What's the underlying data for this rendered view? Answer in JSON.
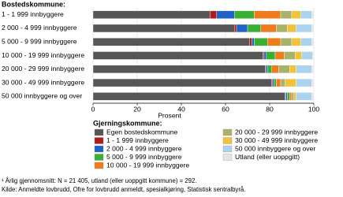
{
  "chart_data": {
    "type": "bar",
    "orientation": "horizontal",
    "stacked": true,
    "y_label": "Bostedskommune:",
    "x_label": "Prosent",
    "legend_title": "Gjerningskommune:",
    "categories": [
      "1 - 1 999 innbyggere",
      "2 000  -  4 999 innbyggere",
      "5 000  -  9 999 innbyggere",
      "10 000 - 19 999 innbyggere",
      "20 000 - 29 999 innbyggere",
      "30 000 - 49 999 innbyggere",
      "50 000 innbyggere og over"
    ],
    "series": [
      {
        "name": "Egen bostedskommune",
        "color": "#575757",
        "values": [
          53,
          64,
          71,
          77,
          78,
          81,
          87
        ]
      },
      {
        "name": "1 - 1 999 innbyggere",
        "color": "#b01c1c",
        "values": [
          3,
          1,
          1,
          0.5,
          0.3,
          0.3,
          0.3
        ]
      },
      {
        "name": "2 000 - 4 999 innbyggere",
        "color": "#1f63c6",
        "values": [
          8,
          5,
          1,
          1,
          0.7,
          0.7,
          0.7
        ]
      },
      {
        "name": "5 000 - 9 999 innbyggere",
        "color": "#3aaf35",
        "values": [
          9,
          6,
          6,
          4,
          2,
          1,
          1
        ]
      },
      {
        "name": "10 000 - 19 999 innbyggere",
        "color": "#ef7b1d",
        "values": [
          12,
          7,
          6,
          4,
          3,
          2,
          1
        ]
      },
      {
        "name": "20 000 - 29 999 innbyggere",
        "color": "#a9b26b",
        "values": [
          5,
          5,
          5,
          5,
          5,
          2,
          1
        ]
      },
      {
        "name": "30 000 - 49 999 innbyggere",
        "color": "#f2c23c",
        "values": [
          4,
          4,
          4,
          3,
          3,
          5,
          1
        ]
      },
      {
        "name": "50 000 innbyggere og over",
        "color": "#a9d3ef",
        "values": [
          5,
          7,
          5,
          5,
          7,
          7,
          7
        ]
      },
      {
        "name": "Utland (eller uoppgitt)",
        "color": "#e4e4e4",
        "values": [
          1,
          1,
          1,
          0.5,
          1,
          1,
          1
        ]
      }
    ],
    "xlim": [
      0,
      100
    ],
    "xticks": [
      0,
      20,
      40,
      60,
      80,
      100
    ],
    "grid": true,
    "notes": [
      "¹ Årlig gjennomsnitt: N = 21 405, utland (eller uoppgitt kommune) = 292.",
      "Kilde: Anmeldte lovbrudd, Ofre for lovbrudd anmeldt, spesialkjøring, Statistisk sentralbyrå."
    ]
  }
}
